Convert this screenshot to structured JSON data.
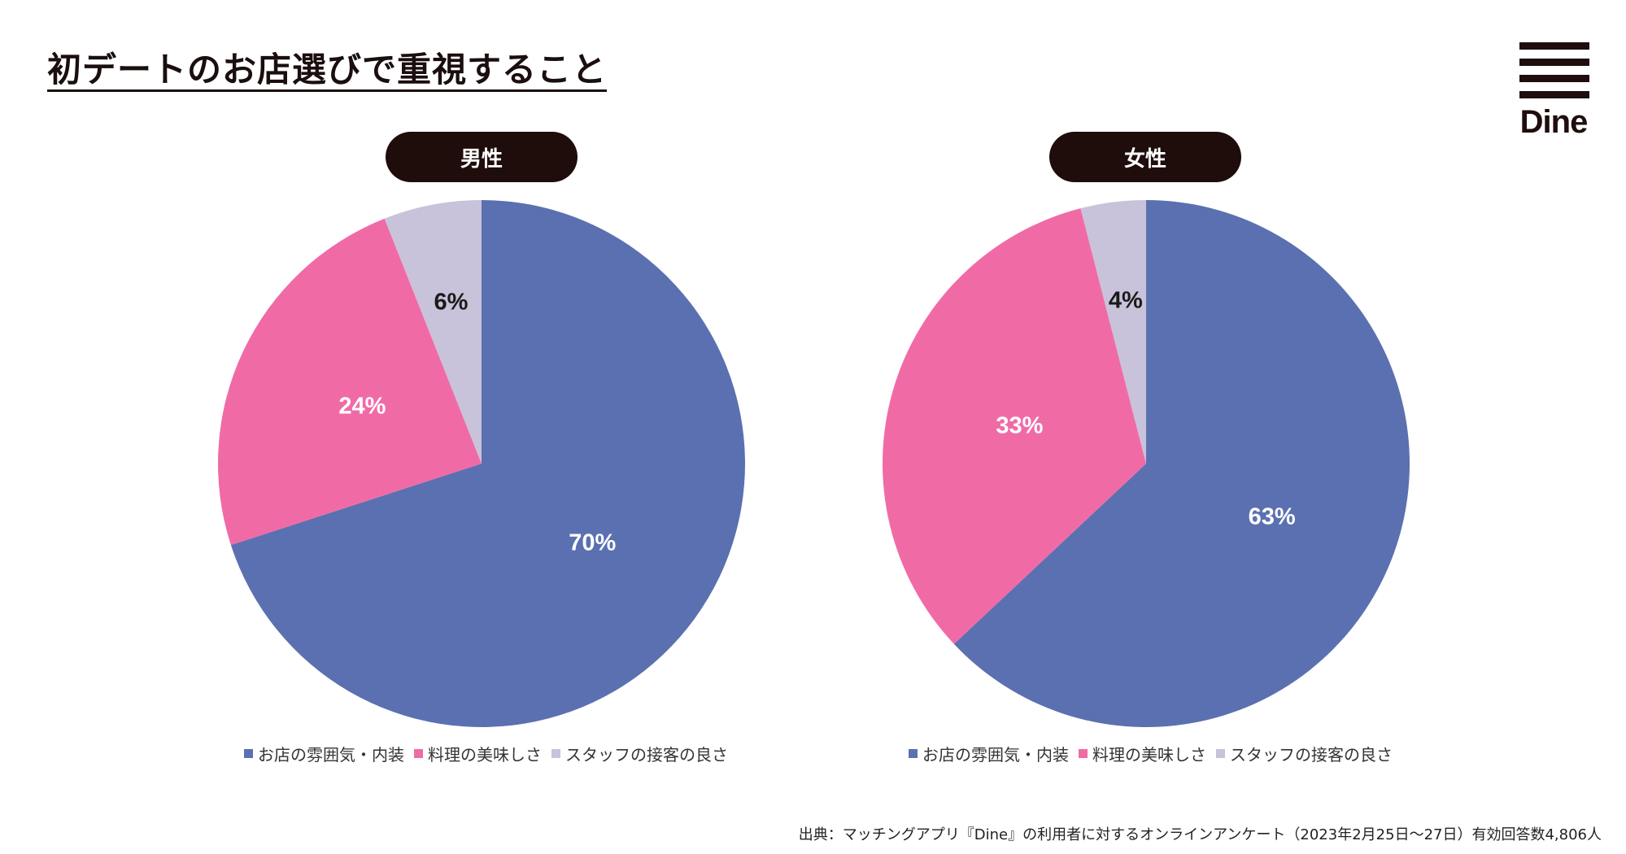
{
  "page": {
    "title": "初デートのお店選びで重視すること",
    "logo_text": "Dine",
    "source": "出典：マッチングアプリ『Dine』の利用者に対するオンラインアンケート（2023年2月25日〜27日）有効回答数4,806人"
  },
  "colors": {
    "atmosphere": "#5b70b0",
    "food": "#f06ba6",
    "staff": "#c8c2da",
    "pill_bg": "#1f0d0b"
  },
  "chart_data": [
    {
      "type": "pie",
      "title": "男性",
      "labels": [
        "お店の雰囲気・内装",
        "料理の美味しさ",
        "スタッフの接客の良さ"
      ],
      "values": [
        70,
        24,
        6
      ],
      "value_labels": [
        "70%",
        "24%",
        "6%"
      ],
      "start": "12 o'clock",
      "direction": "clockwise",
      "legend": "bottom"
    },
    {
      "type": "pie",
      "title": "女性",
      "labels": [
        "お店の雰囲気・内装",
        "料理の美味しさ",
        "スタッフの接客の良さ"
      ],
      "values": [
        63,
        33,
        4
      ],
      "value_labels": [
        "63%",
        "33%",
        "4%"
      ],
      "start": "12 o'clock",
      "direction": "clockwise",
      "legend": "bottom"
    }
  ]
}
